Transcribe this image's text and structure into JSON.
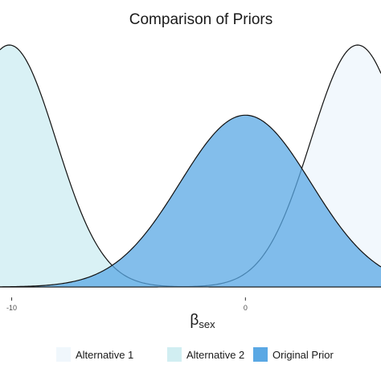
{
  "chart_data": {
    "type": "area",
    "title": "Comparison of Priors",
    "xlabel_symbol": "β",
    "xlabel_subscript": "sex",
    "ylabel": "",
    "xlim": [
      -10.5,
      5.8
    ],
    "x_ticks": [
      -10,
      0
    ],
    "x_tick_labels": [
      "-10",
      "0"
    ],
    "grid": false,
    "legend_position": "bottom",
    "series": [
      {
        "name": "Alternative 1",
        "mean": 4.8,
        "sd": 2.0,
        "fill": "#eef6fc",
        "peak_fraction": 1.0
      },
      {
        "name": "Alternative 2",
        "mean": -10.1,
        "sd": 2.0,
        "fill": "#ccecf1",
        "peak_fraction": 1.0
      },
      {
        "name": "Original Prior",
        "mean": 0.0,
        "sd": 2.8,
        "fill": "#5aa8e4",
        "peak_fraction": 0.71
      }
    ]
  }
}
